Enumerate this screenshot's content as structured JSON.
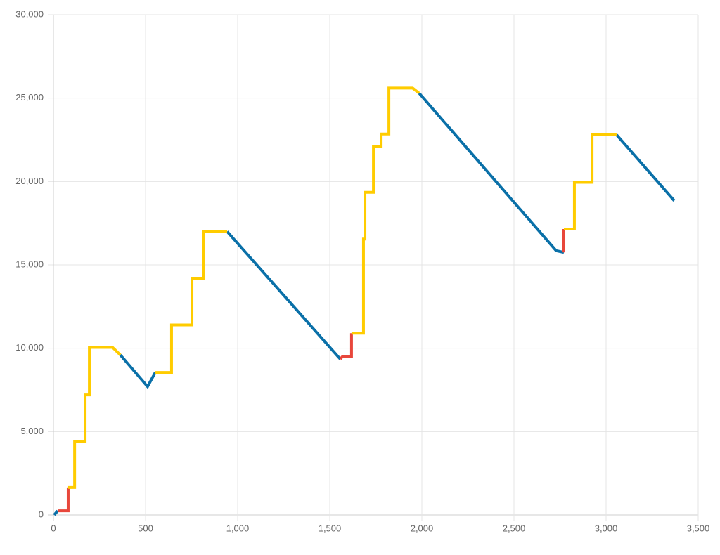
{
  "chart_data": {
    "type": "line",
    "x": [
      4,
      23,
      80,
      80,
      115,
      115,
      172,
      172,
      195,
      195,
      321,
      363,
      511,
      553,
      641,
      641,
      752,
      752,
      813,
      813,
      943,
      1557,
      1569,
      1618,
      1618,
      1683,
      1683,
      1691,
      1691,
      1737,
      1737,
      1779,
      1779,
      1821,
      1821,
      1950,
      1985,
      2729,
      2771,
      2771,
      2828,
      2828,
      2924,
      2924,
      3057,
      3370
    ],
    "series": [
      {
        "color": "#0a70a8",
        "values": [
          0,
          250,
          null,
          null,
          null,
          null,
          null,
          null,
          null,
          null,
          null,
          9600,
          7700,
          8550,
          null,
          null,
          null,
          null,
          null,
          null,
          17000,
          9350,
          null,
          null,
          null,
          null,
          null,
          null,
          null,
          null,
          null,
          null,
          null,
          null,
          null,
          null,
          25300,
          15850,
          15750,
          null,
          null,
          null,
          null,
          null,
          22800,
          18850
        ]
      },
      {
        "color": "#e8473b",
        "values": [
          null,
          250,
          250,
          1650,
          null,
          null,
          null,
          null,
          null,
          null,
          null,
          null,
          null,
          null,
          null,
          null,
          null,
          null,
          null,
          null,
          null,
          9350,
          9500,
          9500,
          10900,
          null,
          null,
          null,
          null,
          null,
          null,
          null,
          null,
          null,
          null,
          null,
          null,
          null,
          15750,
          17150,
          null,
          null,
          null,
          null,
          null,
          null
        ]
      },
      {
        "color": "#ffcc00",
        "values": [
          null,
          null,
          null,
          1650,
          1650,
          4400,
          4400,
          7200,
          7200,
          10050,
          10050,
          9600,
          null,
          8550,
          8550,
          11400,
          11400,
          14200,
          14200,
          17000,
          17000,
          null,
          null,
          null,
          10900,
          10900,
          16550,
          16550,
          19350,
          19350,
          22100,
          22100,
          22850,
          22850,
          25600,
          25600,
          25300,
          null,
          null,
          17150,
          17150,
          19950,
          19950,
          22800,
          22800,
          null
        ]
      }
    ],
    "xlim": [
      0,
      3500
    ],
    "xticks": [
      0,
      500,
      {
        "value": 1000,
        "label": "1,000"
      },
      {
        "value": 1500,
        "label": "1,500"
      },
      {
        "value": 2000,
        "label": "2,000"
      },
      {
        "value": 2500,
        "label": "2,500"
      },
      {
        "value": 3000,
        "label": "3,000"
      },
      {
        "value": 3500,
        "label": "3,500"
      }
    ],
    "ylim": [
      0,
      30000
    ],
    "yticks": [
      0,
      {
        "value": 5000,
        "label": "5,000"
      },
      {
        "value": 10000,
        "label": "10,000"
      },
      {
        "value": 15000,
        "label": "15,000"
      },
      {
        "value": 20000,
        "label": "20,000"
      },
      {
        "value": 25000,
        "label": "25,000"
      },
      {
        "value": 30000,
        "label": "30,000"
      }
    ],
    "grid": true
  }
}
